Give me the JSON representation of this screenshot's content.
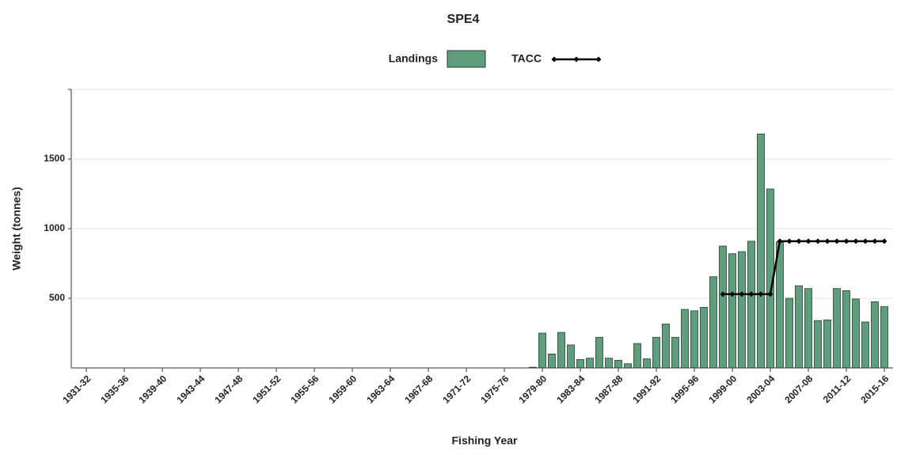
{
  "chart_data": {
    "type": "bar",
    "title": "SPE4",
    "x_label": "Fishing Year",
    "y_label": "Weight (tonnes)",
    "categories": [
      "1931-32",
      null,
      null,
      null,
      "1935-36",
      null,
      null,
      null,
      "1939-40",
      null,
      null,
      null,
      "1943-44",
      null,
      null,
      null,
      "1947-48",
      null,
      null,
      null,
      "1951-52",
      null,
      null,
      null,
      "1955-56",
      null,
      null,
      null,
      "1959-60",
      null,
      null,
      null,
      "1963-64",
      null,
      null,
      null,
      "1967-68",
      null,
      null,
      null,
      "1971-72",
      null,
      null,
      null,
      "1975-76",
      null,
      null,
      null,
      "1979-80",
      null,
      null,
      null,
      "1983-84",
      null,
      null,
      null,
      "1987-88",
      null,
      null,
      null,
      "1991-92",
      null,
      null,
      null,
      "1995-96",
      null,
      null,
      null,
      "1999-00",
      null,
      null,
      null,
      "2003-04",
      null,
      null,
      null,
      "2007-08",
      null,
      null,
      null,
      "2011-12",
      null,
      null,
      null,
      "2015-16"
    ],
    "series": [
      {
        "name": "Landings",
        "type": "bar",
        "color": "#5e9e7c",
        "values": [
          null,
          null,
          null,
          null,
          null,
          null,
          null,
          null,
          null,
          null,
          null,
          null,
          null,
          null,
          null,
          null,
          null,
          null,
          null,
          null,
          null,
          null,
          null,
          null,
          null,
          null,
          null,
          null,
          null,
          null,
          null,
          null,
          null,
          null,
          null,
          null,
          null,
          null,
          null,
          null,
          null,
          null,
          null,
          null,
          null,
          null,
          null,
          5,
          250,
          100,
          255,
          165,
          60,
          70,
          220,
          70,
          55,
          30,
          175,
          65,
          220,
          315,
          220,
          420,
          410,
          435,
          655,
          875,
          820,
          835,
          910,
          1680,
          1285,
          905,
          500,
          590,
          570,
          340,
          345,
          570,
          555,
          495,
          330,
          475,
          440
        ]
      },
      {
        "name": "TACC",
        "type": "line",
        "color": "#000000",
        "values": [
          null,
          null,
          null,
          null,
          null,
          null,
          null,
          null,
          null,
          null,
          null,
          null,
          null,
          null,
          null,
          null,
          null,
          null,
          null,
          null,
          null,
          null,
          null,
          null,
          null,
          null,
          null,
          null,
          null,
          null,
          null,
          null,
          null,
          null,
          null,
          null,
          null,
          null,
          null,
          null,
          null,
          null,
          null,
          null,
          null,
          null,
          null,
          null,
          null,
          null,
          null,
          null,
          null,
          null,
          null,
          null,
          null,
          null,
          null,
          null,
          null,
          null,
          null,
          null,
          null,
          null,
          null,
          530,
          530,
          530,
          530,
          530,
          530,
          910,
          910,
          910,
          910,
          910,
          910,
          910,
          910,
          910,
          910,
          910,
          910
        ]
      }
    ],
    "ylim": [
      0,
      2000
    ],
    "yticks": [
      500,
      1000,
      1500
    ],
    "grid": true
  }
}
